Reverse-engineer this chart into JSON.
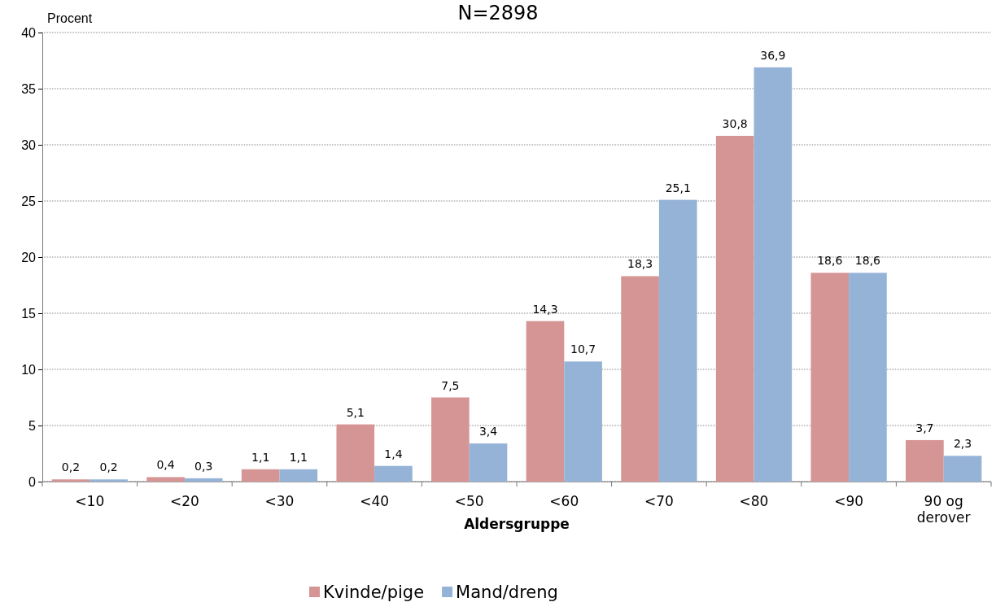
{
  "chart_data": {
    "type": "bar",
    "title": "N=2898",
    "xlabel": "Aldersgruppe",
    "ylabel": "Procent",
    "categories": [
      "<10",
      "<20",
      "<30",
      "<40",
      "<50",
      "<60",
      "<70",
      "<80",
      "<90",
      "90 og derover"
    ],
    "series": [
      {
        "name": "Kvinde/pige",
        "color": "#d59594",
        "values": [
          0.2,
          0.4,
          1.1,
          5.1,
          7.5,
          14.3,
          18.3,
          30.8,
          18.6,
          3.7
        ],
        "value_labels": [
          "0,2",
          "0,4",
          "1,1",
          "5,1",
          "7,5",
          "14,3",
          "18,3",
          "30,8",
          "18,6",
          "3,7"
        ]
      },
      {
        "name": "Mand/dreng",
        "color": "#95b3d7",
        "values": [
          0.2,
          0.3,
          1.1,
          1.4,
          3.4,
          10.7,
          25.1,
          36.9,
          18.6,
          2.3
        ],
        "value_labels": [
          "0,2",
          "0,3",
          "1,1",
          "1,4",
          "3,4",
          "10,7",
          "25,1",
          "36,9",
          "18,6",
          "2,3"
        ]
      }
    ],
    "ylim": [
      0,
      40
    ],
    "yticks": [
      0,
      5,
      10,
      15,
      20,
      25,
      30,
      35,
      40
    ],
    "grid": "y",
    "legend": "bottom"
  }
}
